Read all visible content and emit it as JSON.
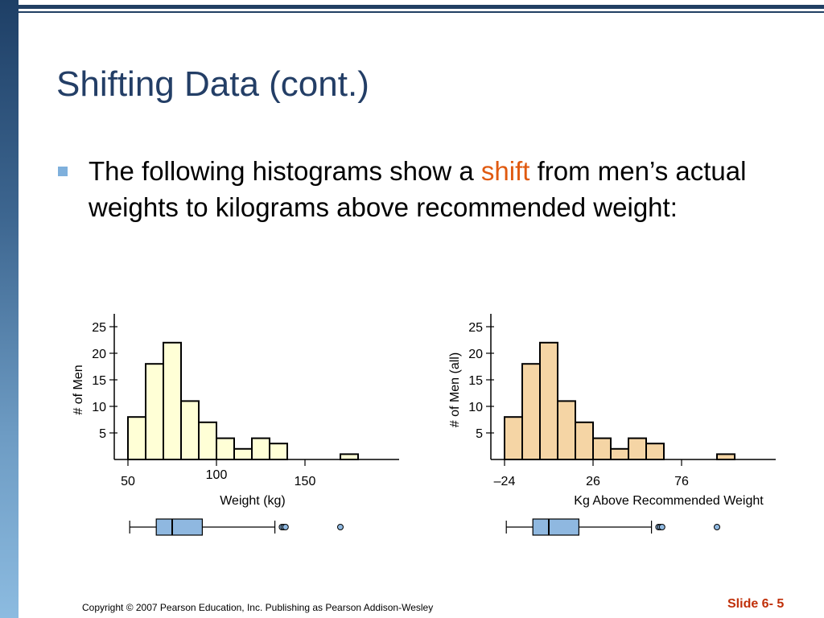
{
  "slide": {
    "title": "Shifting Data (cont.)",
    "bullet": {
      "before": "The following histograms show a ",
      "highlight": "shift",
      "after": " from men’s actual weights to kilograms above recommended weight:"
    },
    "footer": {
      "copyright": "Copyright © 2007 Pearson Education, Inc. Publishing as Pearson Addison-Wesley",
      "slide_number": "Slide 6- 5"
    }
  },
  "colors": {
    "title": "#233e66",
    "bar_border": "#7fb0dc",
    "highlight": "#e05a10",
    "histogram1_fill": "#ffffd6",
    "histogram2_fill": "#f5d5a5",
    "boxplot_fill": "#8fb8e0",
    "footer_slide": "#c0300a"
  },
  "chart_data": [
    {
      "type": "bar",
      "xlabel": "Weight (kg)",
      "ylabel": "# of Men",
      "x_ticks": [
        50,
        100,
        150
      ],
      "y_ticks": [
        5,
        10,
        15,
        20,
        25
      ],
      "bins": [
        {
          "start": 50,
          "end": 60,
          "count": 8
        },
        {
          "start": 60,
          "end": 70,
          "count": 18
        },
        {
          "start": 70,
          "end": 80,
          "count": 22
        },
        {
          "start": 80,
          "end": 90,
          "count": 11
        },
        {
          "start": 90,
          "end": 100,
          "count": 7
        },
        {
          "start": 100,
          "end": 110,
          "count": 4
        },
        {
          "start": 110,
          "end": 120,
          "count": 2
        },
        {
          "start": 120,
          "end": 130,
          "count": 4
        },
        {
          "start": 130,
          "end": 140,
          "count": 3
        },
        {
          "start": 140,
          "end": 150,
          "count": 0
        },
        {
          "start": 150,
          "end": 160,
          "count": 0
        },
        {
          "start": 160,
          "end": 170,
          "count": 0
        },
        {
          "start": 170,
          "end": 180,
          "count": 1
        }
      ],
      "boxplot": {
        "whisker_low": 51,
        "q1": 66,
        "median": 75,
        "q3": 92,
        "whisker_high": 133,
        "outliers": [
          137,
          138,
          139,
          170
        ]
      }
    },
    {
      "type": "bar",
      "xlabel": "Kg Above Recommended Weight",
      "ylabel": "# of Men (all)",
      "x_ticks": [
        -24,
        26,
        76
      ],
      "x_tick_labels": [
        "–24",
        "26",
        "76"
      ],
      "y_ticks": [
        5,
        10,
        15,
        20,
        25
      ],
      "bins": [
        {
          "start": -24,
          "end": -14,
          "count": 8
        },
        {
          "start": -14,
          "end": -4,
          "count": 18
        },
        {
          "start": -4,
          "end": 6,
          "count": 22
        },
        {
          "start": 6,
          "end": 16,
          "count": 11
        },
        {
          "start": 16,
          "end": 26,
          "count": 7
        },
        {
          "start": 26,
          "end": 36,
          "count": 4
        },
        {
          "start": 36,
          "end": 46,
          "count": 2
        },
        {
          "start": 46,
          "end": 56,
          "count": 4
        },
        {
          "start": 56,
          "end": 66,
          "count": 3
        },
        {
          "start": 66,
          "end": 76,
          "count": 0
        },
        {
          "start": 76,
          "end": 86,
          "count": 0
        },
        {
          "start": 86,
          "end": 96,
          "count": 0
        },
        {
          "start": 96,
          "end": 106,
          "count": 1
        }
      ],
      "boxplot": {
        "whisker_low": -23,
        "q1": -8,
        "median": 1,
        "q3": 18,
        "whisker_high": 59,
        "outliers": [
          63,
          64,
          65,
          96
        ]
      }
    }
  ]
}
